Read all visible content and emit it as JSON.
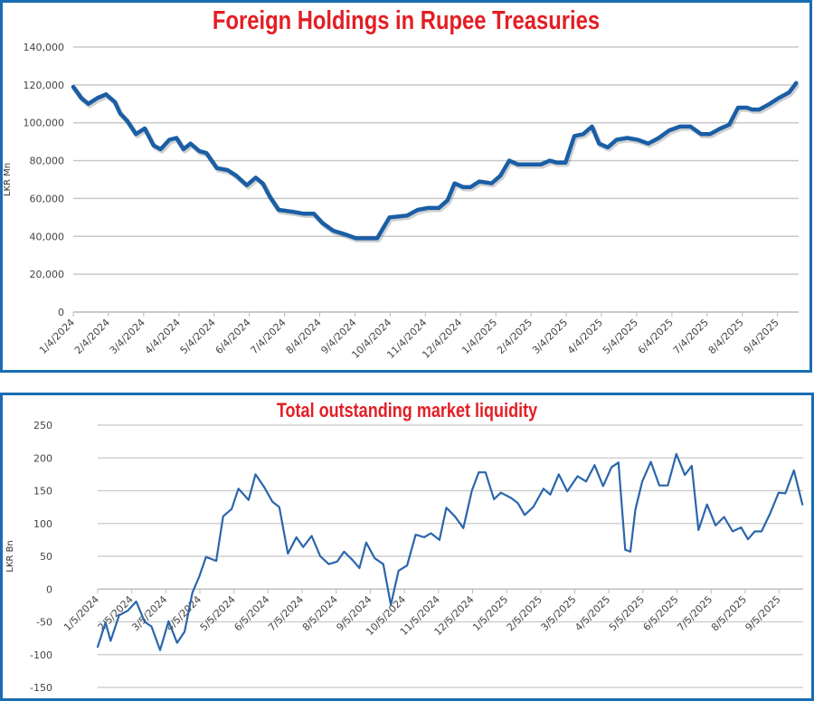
{
  "chart_data": [
    {
      "type": "line",
      "title": "Foreign Holdings in Rupee Treasuries",
      "xlabel": "",
      "ylabel": "LKR Mn",
      "ylim": [
        0,
        140000
      ],
      "yticks": [
        0,
        20000,
        40000,
        60000,
        80000,
        100000,
        120000,
        140000
      ],
      "ytick_labels": [
        "0",
        "20,000",
        "40,000",
        "60,000",
        "80,000",
        "100,000",
        "120,000",
        "140,000"
      ],
      "x_unit": "months since 1/4/2024",
      "xlim": [
        0,
        20.6
      ],
      "xtick_labels": [
        "1/4/2024",
        "2/4/2024",
        "3/4/2024",
        "4/4/2024",
        "5/4/2024",
        "6/4/2024",
        "7/4/2024",
        "8/4/2024",
        "9/4/2024",
        "10/4/2024",
        "11/4/2024",
        "12/4/2024",
        "1/4/2025",
        "2/4/2025",
        "3/4/2025",
        "4/4/2025",
        "5/4/2025",
        "6/4/2025",
        "7/4/2025",
        "8/4/2025",
        "9/4/2025"
      ],
      "grid": true,
      "legend": "none",
      "color": "#1a5ea6",
      "series": [
        {
          "name": "Foreign Holdings",
          "x": [
            0,
            0.23,
            0.43,
            0.68,
            0.93,
            1.18,
            1.33,
            1.53,
            1.78,
            2.03,
            2.28,
            2.48,
            2.73,
            2.93,
            3.13,
            3.33,
            3.58,
            3.78,
            4.08,
            4.38,
            4.63,
            4.93,
            5.18,
            5.38,
            5.58,
            5.83,
            6.23,
            6.53,
            6.83,
            7.08,
            7.38,
            7.73,
            8.03,
            8.63,
            8.98,
            9.48,
            9.78,
            10.08,
            10.38,
            10.63,
            10.83,
            11.08,
            11.28,
            11.53,
            11.88,
            12.13,
            12.38,
            12.63,
            12.93,
            13.28,
            13.53,
            13.73,
            13.98,
            14.23,
            14.48,
            14.73,
            14.93,
            15.18,
            15.43,
            15.73,
            16.03,
            16.33,
            16.63,
            16.93,
            17.23,
            17.53,
            17.83,
            18.08,
            18.38,
            18.63,
            18.88,
            19.13,
            19.28,
            19.48,
            19.78,
            20.03,
            20.33,
            20.53
          ],
          "y": [
            119000,
            113000,
            110000,
            113000,
            115000,
            111000,
            105000,
            101000,
            94000,
            97000,
            88000,
            86000,
            91000,
            92000,
            86000,
            89000,
            85000,
            84000,
            76000,
            75000,
            72000,
            67000,
            71000,
            68000,
            61000,
            54000,
            53000,
            52000,
            52000,
            47000,
            43000,
            41000,
            39000,
            39000,
            50000,
            51000,
            54000,
            55000,
            55000,
            59000,
            68000,
            66000,
            66000,
            69000,
            68000,
            72000,
            80000,
            78000,
            78000,
            78000,
            80000,
            79000,
            79000,
            93000,
            94000,
            98000,
            89000,
            87000,
            91000,
            92000,
            91000,
            89000,
            92000,
            96000,
            98000,
            98000,
            94000,
            94000,
            97000,
            99000,
            108000,
            108000,
            107000,
            107000,
            110000,
            113000,
            116000,
            121000
          ]
        }
      ]
    },
    {
      "type": "line",
      "title": "Total outstanding market liquidity",
      "xlabel": "",
      "ylabel": "LKR Bn",
      "ylim": [
        -150,
        250
      ],
      "yticks": [
        -150,
        -100,
        -50,
        0,
        50,
        100,
        150,
        200,
        250
      ],
      "ytick_labels": [
        "-150",
        "-100",
        "-50",
        "0",
        "50",
        "100",
        "150",
        "200",
        "250"
      ],
      "x_unit": "months since 1/5/2024",
      "xlim": [
        0,
        20.7
      ],
      "xtick_labels": [
        "1/5/2024",
        "2/5/2024",
        "3/5/2024",
        "4/5/2024",
        "5/5/2024",
        "6/5/2024",
        "7/5/2024",
        "8/5/2024",
        "9/5/2024",
        "10/5/2024",
        "11/5/2024",
        "12/5/2024",
        "1/5/2025",
        "2/5/2025",
        "3/5/2025",
        "4/5/2025",
        "5/5/2025",
        "6/5/2025",
        "7/5/2025",
        "8/5/2025",
        "9/5/2025"
      ],
      "grid": true,
      "legend": "none",
      "color": "#2a66ab",
      "series": [
        {
          "name": "Market liquidity",
          "x": [
            0,
            0.23,
            0.38,
            0.63,
            0.88,
            1.13,
            1.38,
            1.58,
            1.83,
            2.08,
            2.33,
            2.55,
            2.78,
            2.98,
            3.18,
            3.48,
            3.68,
            3.93,
            4.13,
            4.43,
            4.63,
            4.88,
            5.13,
            5.33,
            5.58,
            5.83,
            6.03,
            6.28,
            6.53,
            6.78,
            7.03,
            7.23,
            7.48,
            7.68,
            7.88,
            8.13,
            8.38,
            8.6,
            8.83,
            9.08,
            9.33,
            9.58,
            9.78,
            10.03,
            10.23,
            10.48,
            10.73,
            10.98,
            11.18,
            11.38,
            11.63,
            11.83,
            12.13,
            12.33,
            12.53,
            12.78,
            13.08,
            13.28,
            13.53,
            13.78,
            14.08,
            14.33,
            14.58,
            14.83,
            15.08,
            15.28,
            15.48,
            15.63,
            15.78,
            15.98,
            16.23,
            16.48,
            16.73,
            16.98,
            17.23,
            17.43,
            17.63,
            17.88,
            18.13,
            18.38,
            18.63,
            18.88,
            19.08,
            19.28,
            19.48,
            19.73,
            19.98,
            20.18,
            20.43,
            20.68
          ],
          "y": [
            -88,
            -51,
            -79,
            -40,
            -33,
            -19,
            -50,
            -57,
            -93,
            -49,
            -82,
            -65,
            -5,
            19,
            49,
            43,
            111,
            122,
            153,
            136,
            175,
            156,
            133,
            125,
            54,
            79,
            64,
            81,
            50,
            38,
            42,
            57,
            44,
            32,
            71,
            47,
            38,
            -24,
            28,
            36,
            83,
            79,
            85,
            75,
            124,
            111,
            93,
            150,
            178,
            178,
            137,
            147,
            139,
            131,
            113,
            125,
            153,
            144,
            175,
            149,
            172,
            164,
            189,
            157,
            186,
            193,
            60,
            57,
            122,
            164,
            194,
            158,
            158,
            206,
            174,
            188,
            90,
            129,
            97,
            110,
            88,
            94,
            76,
            88,
            88,
            115,
            147,
            146,
            181,
            129
          ]
        }
      ]
    }
  ]
}
